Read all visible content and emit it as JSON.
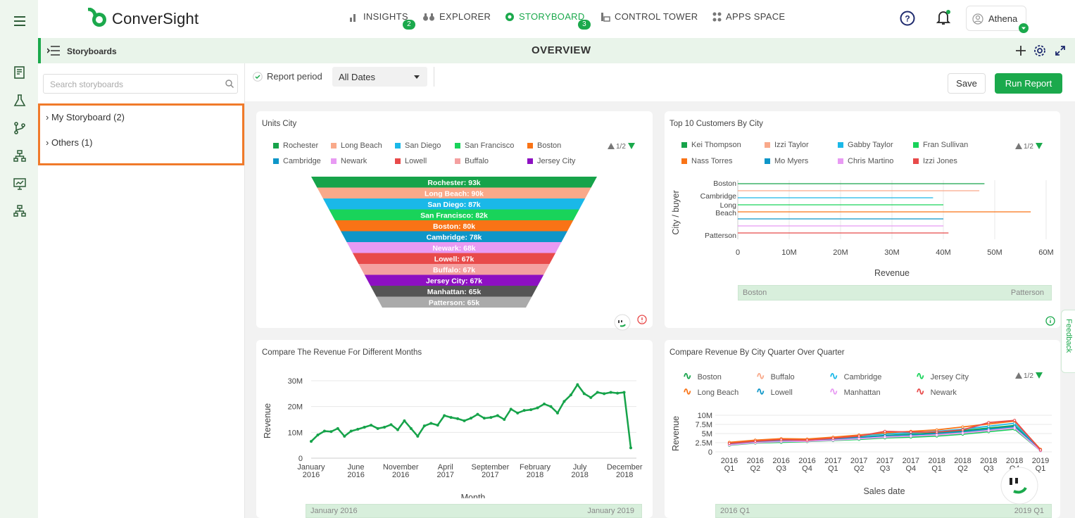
{
  "app": {
    "name": "ConverSight",
    "user": "Athena"
  },
  "nav": [
    {
      "label": "INSIGHTS",
      "badge": "2"
    },
    {
      "label": "EXPLORER"
    },
    {
      "label": "STORYBOARD",
      "badge": "3",
      "active": true
    },
    {
      "label": "CONTROL TOWER"
    },
    {
      "label": "APPS SPACE"
    }
  ],
  "header": {
    "section": "Storyboards",
    "title": "OVERVIEW"
  },
  "sidebar": {
    "search_placeholder": "Search storyboards",
    "items": [
      {
        "label": "My Storyboard (2)"
      },
      {
        "label": "Others (1)"
      }
    ]
  },
  "toolbar": {
    "report_period_label": "Report period",
    "report_period_value": "All Dates",
    "save_label": "Save",
    "run_label": "Run Report"
  },
  "feedback_label": "Feedback",
  "colors": {
    "brand": "#1ba94c",
    "highlight": "#f07a2a"
  },
  "cards": {
    "units_city": {
      "title": "Units City",
      "pager": "1/2"
    },
    "top_customers": {
      "title": "Top 10 Customers By City",
      "pager": "1/2",
      "xlabel": "Revenue",
      "ylabel": "City / buyer",
      "slider_start": "Boston",
      "slider_end": "Patterson"
    },
    "compare_months": {
      "title": "Compare The Revenue For Different Months",
      "xlabel": "Month",
      "ylabel": "Revenue",
      "slider_start": "January 2016",
      "slider_end": "January 2019"
    },
    "compare_quarter": {
      "title": "Compare Revenue By City Quarter Over Quarter",
      "pager": "1/2",
      "xlabel": "Sales date",
      "ylabel": "Revenue",
      "slider_start": "2016 Q1",
      "slider_end": "2019 Q1"
    }
  },
  "chart_data": [
    {
      "type": "funnel",
      "title": "Units City",
      "categories": [
        "Rochester",
        "Long Beach",
        "San Diego",
        "San Francisco",
        "Boston",
        "Cambridge",
        "Newark",
        "Lowell",
        "Buffalo",
        "Jersey City",
        "Manhattan",
        "Patterson"
      ],
      "values": [
        93,
        90,
        87,
        82,
        80,
        78,
        68,
        67,
        67,
        67,
        65,
        65
      ],
      "labels": [
        "Rochester: 93k",
        "Long Beach: 90k",
        "San Diego: 87k",
        "San Francisco: 82k",
        "Boston: 80k",
        "Cambridge: 78k",
        "Newark: 68k",
        "Lowell: 67k",
        "Buffalo: 67k",
        "Jersey City: 67k",
        "Manhattan: 65k",
        "Patterson: 65k"
      ],
      "legend": [
        "Rochester",
        "Long Beach",
        "San Diego",
        "San Francisco",
        "Boston",
        "Cambridge",
        "Newark",
        "Lowell",
        "Buffalo",
        "Jersey City"
      ],
      "colors": [
        "#16a34a",
        "#f9a98a",
        "#1ab8e8",
        "#19d35a",
        "#f97316",
        "#0e96c8",
        "#e89af3",
        "#e84a4a",
        "#f4a0a0",
        "#8d10c2",
        "#555555",
        "#aaaaaa"
      ]
    },
    {
      "type": "bar",
      "title": "Top 10 Customers By City",
      "legend": [
        "Kei Thompson",
        "Izzi Taylor",
        "Gabby Taylor",
        "Fran Sullivan",
        "Nass Torres",
        "Mo Myers",
        "Chris Martino",
        "Izzi Jones"
      ],
      "legend_colors": [
        "#16a34a",
        "#f9a98a",
        "#1ab8e8",
        "#19d35a",
        "#f97316",
        "#0e96c8",
        "#e89af3",
        "#e84a4a"
      ],
      "categories": [
        "Boston",
        "Cambridge",
        "Long Beach",
        "Patterson"
      ],
      "series_values": [
        48,
        47,
        38,
        40,
        57,
        40,
        40,
        41
      ],
      "xticks": [
        "0",
        "10M",
        "20M",
        "30M",
        "40M",
        "50M",
        "60M"
      ],
      "xlim": [
        0,
        60
      ],
      "xlabel": "Revenue",
      "ylabel": "City / buyer"
    },
    {
      "type": "line",
      "title": "Compare The Revenue For Different Months",
      "yticks": [
        "0",
        "10M",
        "20M",
        "30M"
      ],
      "ylim": [
        0,
        30
      ],
      "xticks": [
        "January 2016",
        "June 2016",
        "November 2016",
        "April 2017",
        "September 2017",
        "February 2018",
        "July 2018",
        "December 2018"
      ],
      "values": [
        6.5,
        9,
        10.5,
        10.3,
        11.5,
        8.5,
        10.5,
        11.2,
        12,
        12.8,
        11.5,
        12,
        13,
        11,
        14.5,
        11.5,
        8.5,
        12.5,
        13.5,
        12.8,
        16.5,
        15.8,
        15.3,
        14.5,
        15.5,
        17,
        15.5,
        15.8,
        16.5,
        15,
        19,
        17.5,
        18.5,
        18.8,
        19.5,
        21,
        20,
        17.5,
        22,
        24.5,
        28.5,
        25,
        23.5,
        25.5,
        25,
        25.5,
        25.2,
        25.5,
        4
      ],
      "xlabel": "Month",
      "ylabel": "Revenue",
      "color": "#16a34a"
    },
    {
      "type": "line",
      "title": "Compare Revenue By City Quarter Over Quarter",
      "legend": [
        "Boston",
        "Buffalo",
        "Cambridge",
        "Jersey City",
        "Long Beach",
        "Lowell",
        "Manhattan",
        "Newark"
      ],
      "legend_colors": [
        "#16a34a",
        "#f9a98a",
        "#1ab8e8",
        "#19d35a",
        "#f97316",
        "#0e96c8",
        "#e89af3",
        "#e84a4a"
      ],
      "categories": [
        "2016 Q1",
        "2016 Q2",
        "2016 Q3",
        "2016 Q4",
        "2017 Q1",
        "2017 Q2",
        "2017 Q3",
        "2017 Q4",
        "2018 Q1",
        "2018 Q2",
        "2018 Q3",
        "2018 Q4",
        "2019 Q1"
      ],
      "yticks": [
        "0",
        "2.5M",
        "5M",
        "7.5M",
        "10M"
      ],
      "ylim": [
        0,
        10
      ],
      "series": [
        {
          "name": "Boston",
          "values": [
            2.2,
            2.8,
            3.2,
            3.0,
            3.6,
            4.0,
            4.5,
            4.8,
            5.2,
            5.8,
            6.5,
            7.2,
            0.5
          ]
        },
        {
          "name": "Buffalo",
          "values": [
            2.0,
            2.6,
            2.9,
            3.1,
            3.3,
            3.8,
            4.2,
            4.4,
            4.8,
            5.3,
            6.0,
            6.6,
            0.4
          ]
        },
        {
          "name": "Cambridge",
          "values": [
            2.4,
            3.0,
            3.4,
            3.3,
            3.8,
            4.4,
            4.9,
            5.2,
            5.6,
            6.2,
            7.0,
            7.8,
            0.6
          ]
        },
        {
          "name": "Jersey City",
          "values": [
            1.8,
            2.4,
            2.6,
            2.8,
            3.1,
            3.4,
            3.8,
            4.0,
            4.3,
            4.8,
            5.5,
            6.2,
            0.3
          ]
        },
        {
          "name": "Long Beach",
          "values": [
            2.6,
            3.2,
            3.6,
            3.5,
            4.0,
            4.6,
            5.2,
            5.6,
            6.0,
            6.8,
            7.6,
            8.4,
            0.7
          ]
        },
        {
          "name": "Lowell",
          "values": [
            2.1,
            2.7,
            3.0,
            3.1,
            3.4,
            3.9,
            4.4,
            4.6,
            5.0,
            5.5,
            6.2,
            6.9,
            0.4
          ]
        },
        {
          "name": "Manhattan",
          "values": [
            1.9,
            2.5,
            2.8,
            2.9,
            3.2,
            3.6,
            4.0,
            4.3,
            4.6,
            5.1,
            5.8,
            6.5,
            0.3
          ]
        },
        {
          "name": "Newark",
          "values": [
            2.3,
            2.9,
            3.3,
            3.2,
            3.7,
            4.3,
            5.6,
            5.4,
            5.4,
            6.0,
            8.0,
            8.6,
            0.5
          ]
        }
      ],
      "xlabel": "Sales date",
      "ylabel": "Revenue"
    }
  ]
}
